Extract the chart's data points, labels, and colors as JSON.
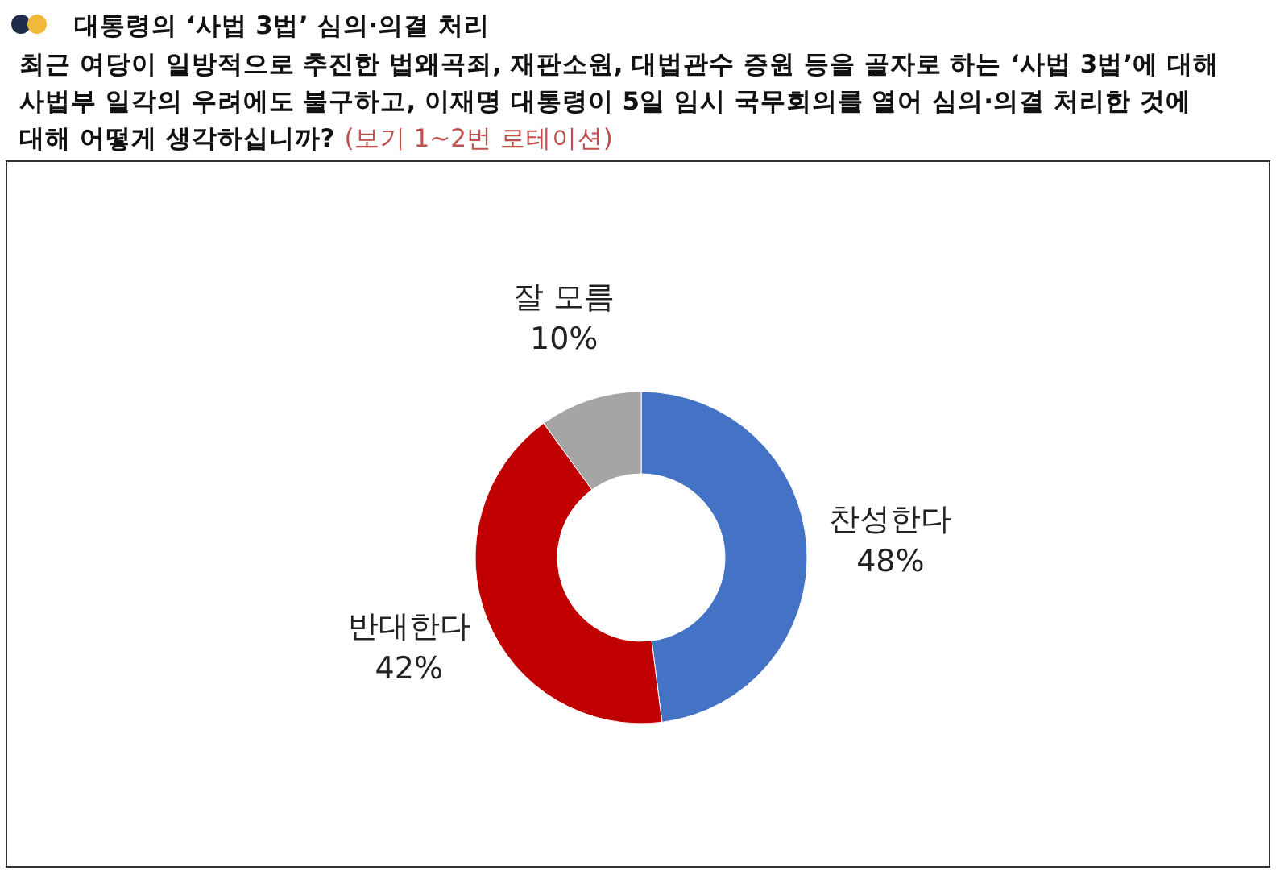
{
  "chart_data": {
    "type": "donut",
    "title": "대통령의 ‘사법 3법’ 심의·의결 처리",
    "subtitle": "최근 여당이 일방적으로 추진한 법왜곡죄, 재판소원, 대법관수 증원 등을 골자로 하는 ‘사법 3법’에 대해 사법부 일각의 우려에도 불구하고, 이재명 대통령이 5일 임시 국무회의를 열어 심의·의결 처리한 것에 대해 어떻게 생각하십니까?",
    "annotations": [
      "(보기 1~2번 로테이션)"
    ],
    "categories": [
      "찬성한다",
      "반대한다",
      "잘 모름"
    ],
    "values": [
      48,
      42,
      10
    ],
    "colors": [
      "#4472c4",
      "#c00000",
      "#a5a5a5"
    ],
    "value_labels": [
      "48%",
      "42%",
      "10%"
    ]
  }
}
